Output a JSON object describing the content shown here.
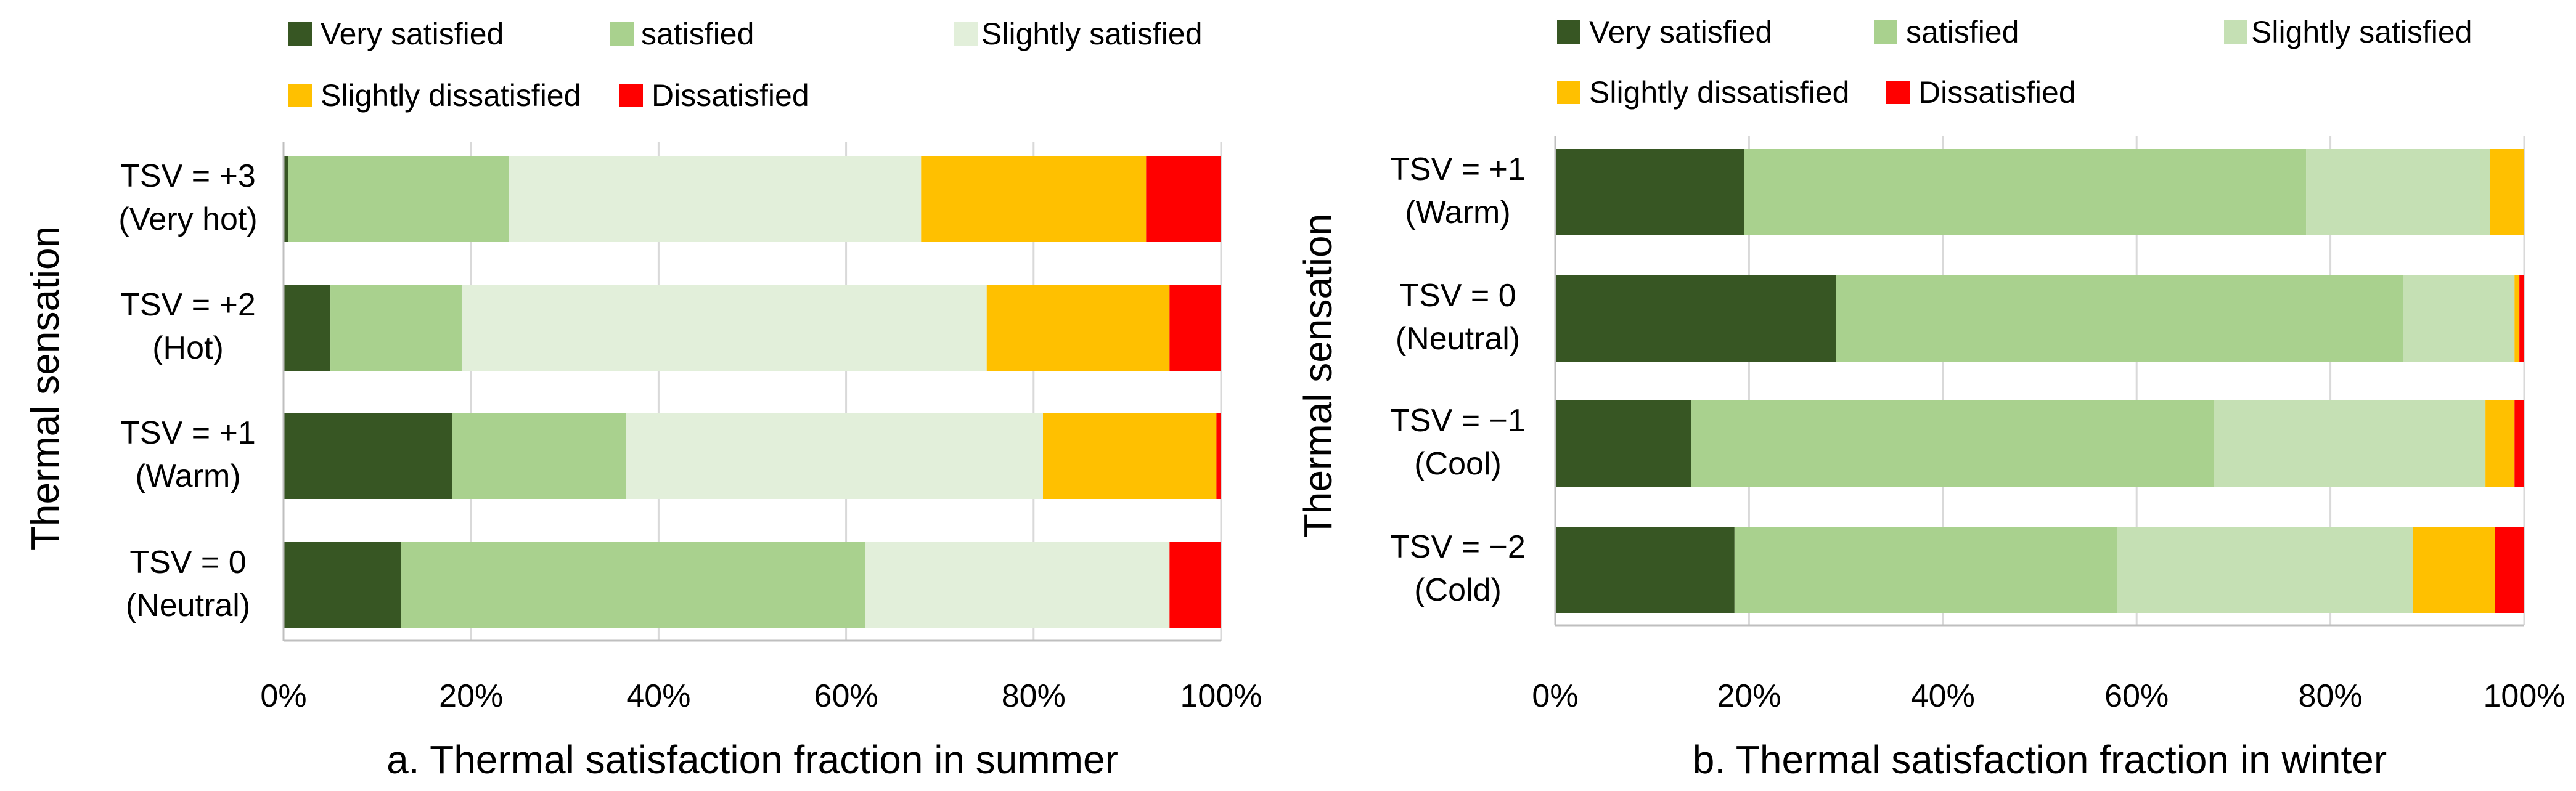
{
  "chart_data": [
    {
      "type": "bar",
      "orientation": "horizontal",
      "stacked": true,
      "title": "",
      "xlabel": "a. Thermal satisfaction fraction in summer",
      "ylabel": "Thermal sensation",
      "xlim": [
        0,
        100
      ],
      "xticks": [
        "0%",
        "20%",
        "40%",
        "60%",
        "80%",
        "100%"
      ],
      "grid": "vertical",
      "legend_position": "top",
      "categories": [
        [
          "TSV = +3",
          "(Very hot)"
        ],
        [
          "TSV = +2",
          "(Hot)"
        ],
        [
          "TSV = +1",
          "(Warm)"
        ],
        [
          "TSV = 0",
          "(Neutral)"
        ]
      ],
      "series": [
        {
          "name": "Very satisfied",
          "color": "#375623",
          "values": [
            0.5,
            5,
            18,
            12.5
          ]
        },
        {
          "name": "satisfied",
          "color": "#A9D18E",
          "values": [
            23.5,
            14,
            18.5,
            49.5
          ]
        },
        {
          "name": "Slightly satisfied",
          "color": "#E2EFDA",
          "values": [
            44,
            56,
            44.5,
            32.5
          ]
        },
        {
          "name": "Slightly dissatisfied",
          "color": "#FFC000",
          "values": [
            24,
            19.5,
            18.5,
            0
          ]
        },
        {
          "name": "Dissatisfied",
          "color": "#FF0000",
          "values": [
            8,
            5.5,
            0.5,
            5.5
          ]
        }
      ]
    },
    {
      "type": "bar",
      "orientation": "horizontal",
      "stacked": true,
      "title": "",
      "xlabel": "b. Thermal satisfaction fraction in winter",
      "ylabel": "Thermal sensation",
      "xlim": [
        0,
        100
      ],
      "xticks": [
        "0%",
        "20%",
        "40%",
        "60%",
        "80%",
        "100%"
      ],
      "grid": "vertical",
      "legend_position": "top",
      "categories": [
        [
          "TSV = +1",
          "(Warm)"
        ],
        [
          "TSV = 0",
          "(Neutral)"
        ],
        [
          "TSV = −1",
          "(Cool)"
        ],
        [
          "TSV = −2",
          "(Cold)"
        ]
      ],
      "series": [
        {
          "name": "Very satisfied",
          "color": "#375623",
          "values": [
            19.5,
            29,
            14,
            18.5
          ]
        },
        {
          "name": "satisfied",
          "color": "#A9D18E",
          "values": [
            58,
            58.5,
            54,
            39.5
          ]
        },
        {
          "name": "Slightly satisfied",
          "color": "#C5E0B4",
          "values": [
            19,
            11.5,
            28,
            30.5
          ]
        },
        {
          "name": "Slightly dissatisfied",
          "color": "#FFC000",
          "values": [
            3.5,
            0.5,
            3,
            8.5
          ]
        },
        {
          "name": "Dissatisfied",
          "color": "#FF0000",
          "values": [
            0,
            0.5,
            1,
            3
          ]
        }
      ]
    }
  ]
}
